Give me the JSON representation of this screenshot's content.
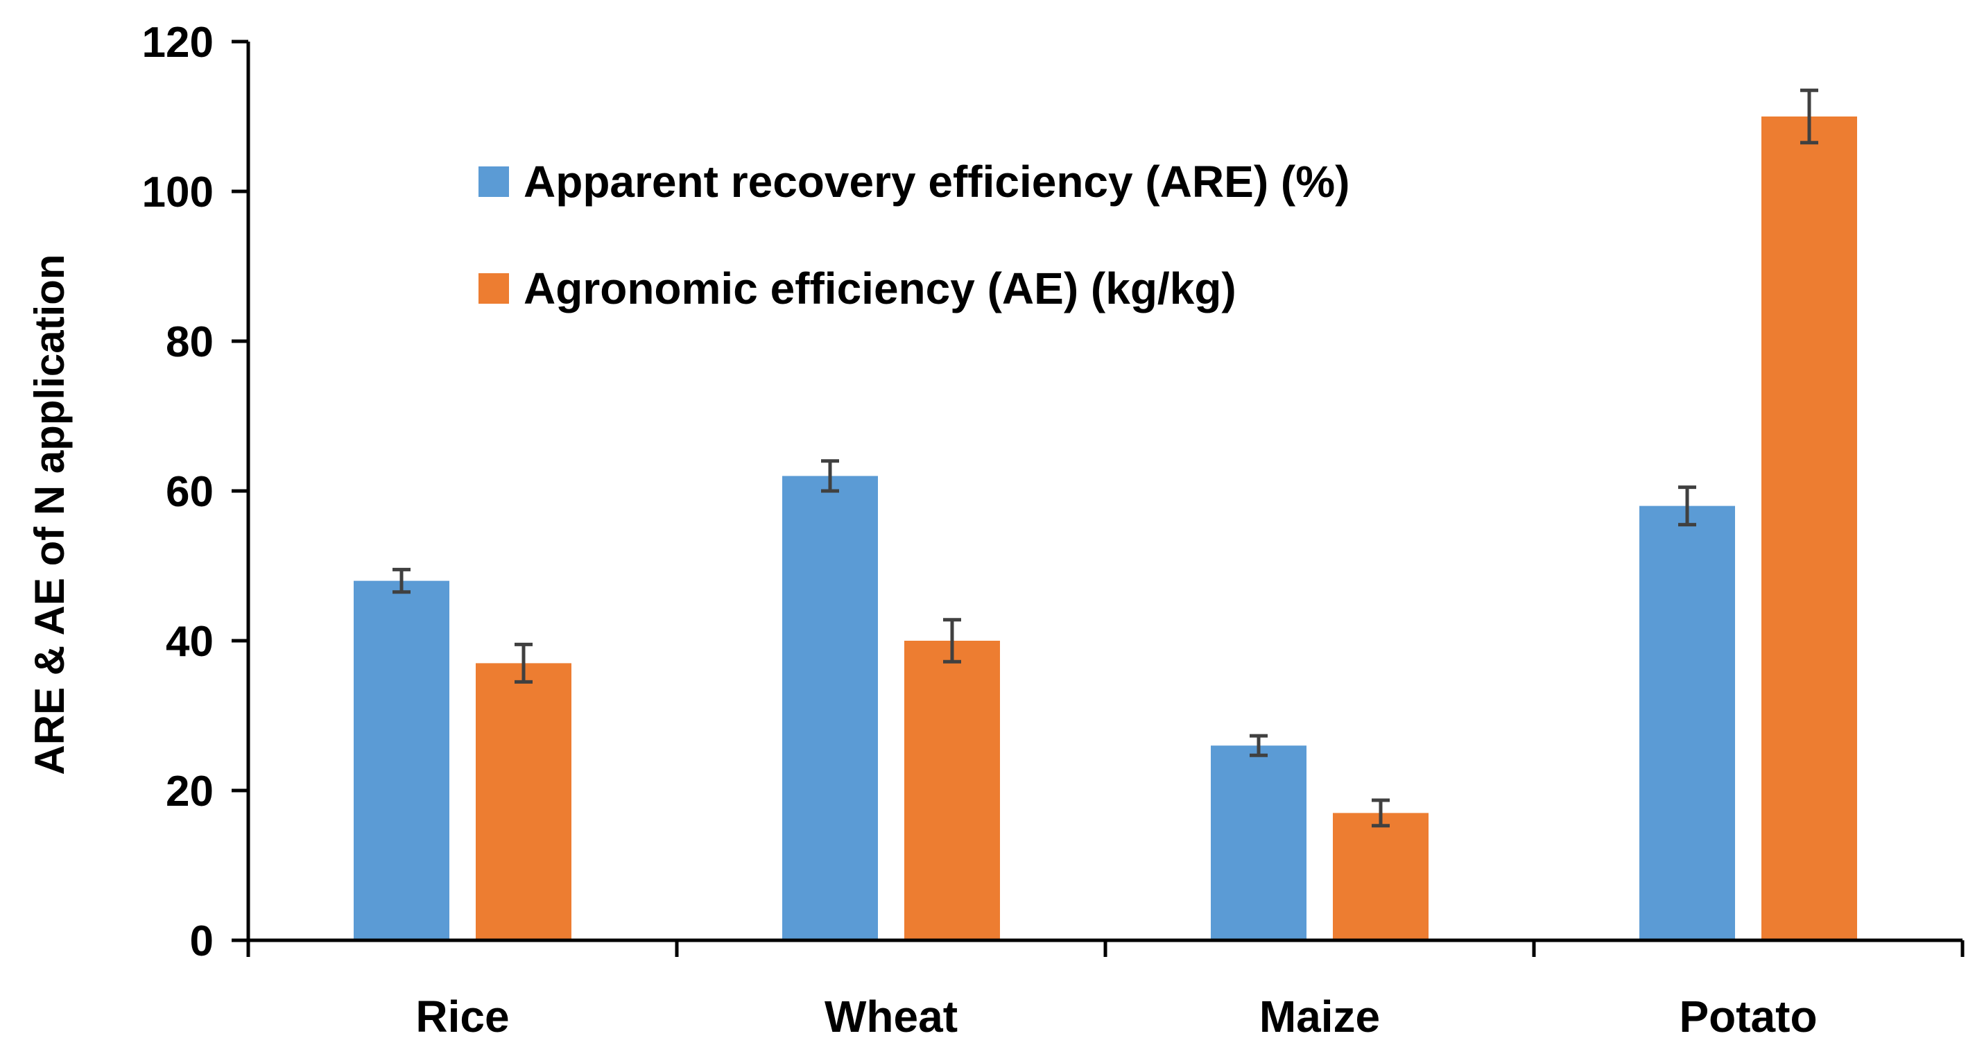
{
  "chart_data": {
    "type": "bar",
    "title": "",
    "xlabel": "",
    "ylabel": "ARE & AE of N application",
    "ylim": [
      0,
      120
    ],
    "yticks": [
      0,
      20,
      40,
      60,
      80,
      100,
      120
    ],
    "grid": false,
    "legend_position": "top-left-inside",
    "categories": [
      "Rice",
      "Wheat",
      "Maize",
      "Potato"
    ],
    "series": [
      {
        "name": "Apparent recovery efficiency (ARE) (%)",
        "color": "#5B9BD5",
        "values": [
          48,
          62,
          26,
          58
        ],
        "errors": [
          1.5,
          2,
          1.3,
          2.5
        ]
      },
      {
        "name": "Agronomic efficiency (AE) (kg/kg)",
        "color": "#ED7D31",
        "values": [
          37,
          40,
          17,
          110
        ],
        "errors": [
          2.5,
          2.8,
          1.7,
          3.5
        ]
      }
    ]
  }
}
